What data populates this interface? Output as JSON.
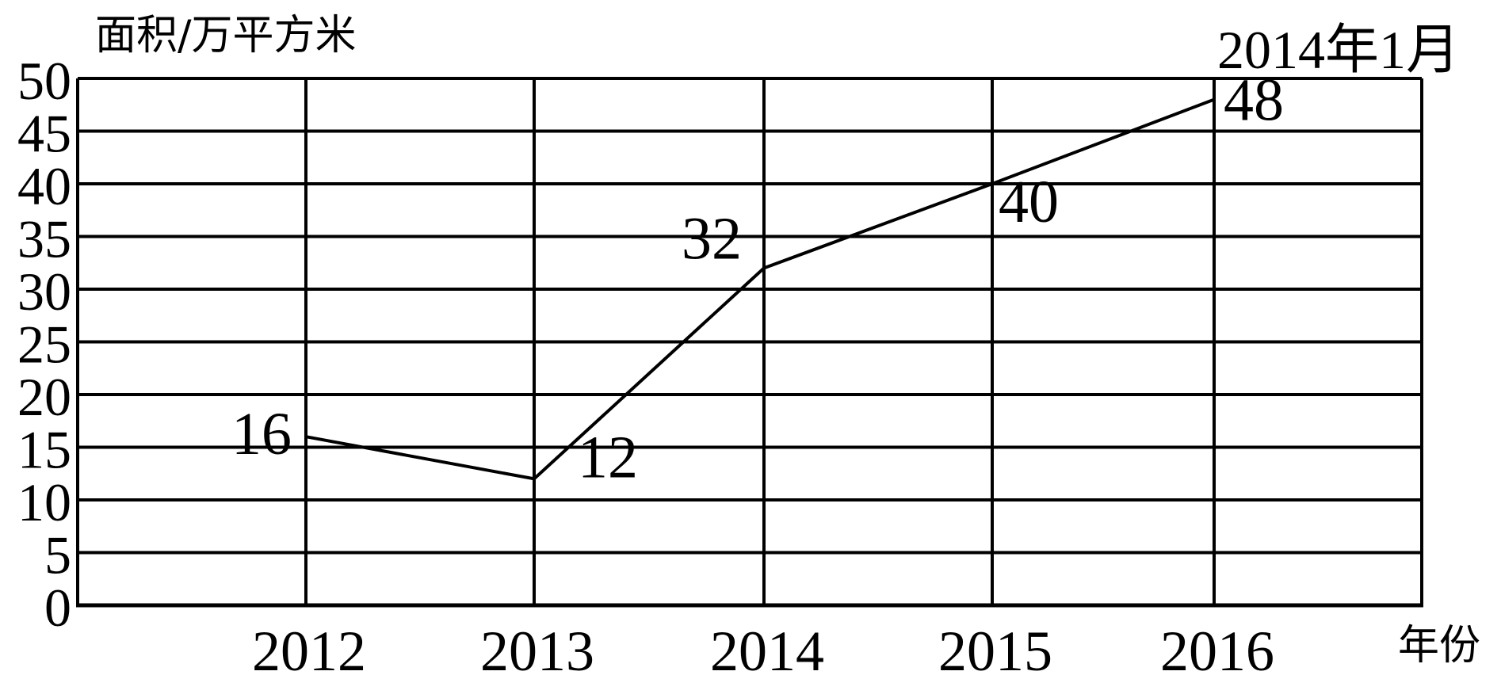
{
  "chart_data": {
    "type": "line",
    "ylabel": "面积/万平方米",
    "xlabel": "年份",
    "annotation": "2014年1月",
    "categories": [
      "2012",
      "2013",
      "2014",
      "2015",
      "2016"
    ],
    "values": [
      16,
      12,
      32,
      40,
      48
    ],
    "data_labels": [
      "16",
      "12",
      "32",
      "40",
      "48"
    ],
    "ylim": [
      0,
      50
    ],
    "ytick_step": 5,
    "yticks": [
      "0",
      "5",
      "10",
      "15",
      "20",
      "25",
      "30",
      "35",
      "40",
      "45",
      "50"
    ],
    "grid": true,
    "colors": {
      "line": "#000000",
      "grid": "#000000",
      "text": "#000000",
      "background": "#ffffff"
    }
  }
}
